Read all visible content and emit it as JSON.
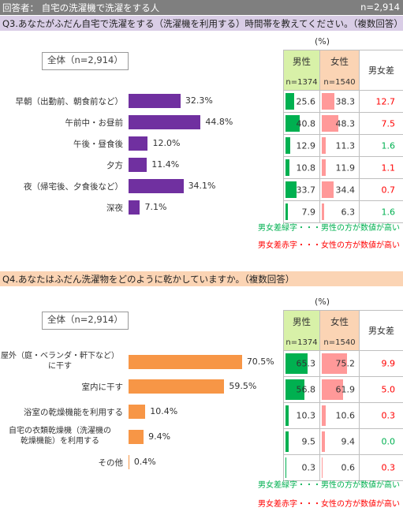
{
  "header": {
    "respondents": "回答者： 自宅の洗濯機で洗濯をする人",
    "total": "n=2,914"
  },
  "colors": {
    "q3_bar": "#7030a0",
    "q4_bar": "#f79646",
    "male_bar": "#00b050",
    "female_bar": "#ff9999",
    "diff_green": "#00b050",
    "diff_red": "#ff0000"
  },
  "table_header": {
    "unit": "(%)",
    "male": "男性",
    "female": "女性",
    "male_n": "n=1374",
    "female_n": "n=1540",
    "diff": "男女差"
  },
  "legend": {
    "green": "男女差緑字・・・男性の方が数値が高い",
    "red": "男女差赤字・・・女性の方が数値が高い"
  },
  "chart_data": [
    {
      "type": "bar",
      "question": "Q3.あなたがふだん自宅で洗濯をする（洗濯機を利用する）時間帯を教えてください。（複数回答）",
      "total_label": "全体（n=2,914）",
      "unit": "(%)",
      "categories": [
        "早朝（出勤前、朝食前など）",
        "午前中・お昼前",
        "午後・昼食後",
        "夕方",
        "夜（帰宅後、夕食後など）",
        "深夜"
      ],
      "series": [
        {
          "name": "全体（n=2,914）",
          "values": [
            32.3,
            44.8,
            12.0,
            11.4,
            34.1,
            7.1
          ],
          "labels": [
            "32.3%",
            "44.8%",
            "12.0%",
            "11.4%",
            "34.1%",
            "7.1%"
          ]
        },
        {
          "name": "男性",
          "values": [
            25.6,
            40.8,
            12.9,
            10.8,
            33.7,
            7.9
          ],
          "labels": [
            "25.6",
            "40.8",
            "12.9",
            "10.8",
            "33.7",
            "7.9"
          ]
        },
        {
          "name": "女性",
          "values": [
            38.3,
            48.3,
            11.3,
            11.9,
            34.4,
            6.3
          ],
          "labels": [
            "38.3",
            "48.3",
            "11.3",
            "11.9",
            "34.4",
            "6.3"
          ]
        }
      ],
      "diff": [
        {
          "value": "12.7",
          "higher": "female"
        },
        {
          "value": "7.5",
          "higher": "female"
        },
        {
          "value": "1.6",
          "higher": "male"
        },
        {
          "value": "1.1",
          "higher": "female"
        },
        {
          "value": "0.7",
          "higher": "female"
        },
        {
          "value": "1.6",
          "higher": "male"
        }
      ]
    },
    {
      "type": "bar",
      "question": "Q4.あなたはふだん洗濯物をどのように乾かしていますか。（複数回答）",
      "total_label": "全体（n=2,914）",
      "unit": "(%)",
      "categories": [
        "屋外（庭・ベランダ・軒下など）に干す",
        "室内に干す",
        "浴室の乾燥機能を利用する",
        "自宅の衣類乾燥機（洗濯機の乾燥機能）を利用する",
        "その他"
      ],
      "category_lines": [
        [
          "屋外（庭・ベランダ・軒下など）",
          "に干す"
        ],
        [
          "室内に干す"
        ],
        [
          "浴室の乾燥機能を利用する"
        ],
        [
          "自宅の衣類乾燥機（洗濯機の",
          "乾燥機能）を利用する"
        ],
        [
          "その他"
        ]
      ],
      "series": [
        {
          "name": "全体（n=2,914）",
          "values": [
            70.5,
            59.5,
            10.4,
            9.4,
            0.4
          ],
          "labels": [
            "70.5%",
            "59.5%",
            "10.4%",
            "9.4%",
            "0.4%"
          ]
        },
        {
          "name": "男性",
          "values": [
            65.3,
            56.8,
            10.3,
            9.5,
            0.3
          ],
          "labels": [
            "65.3",
            "56.8",
            "10.3",
            "9.5",
            "0.3"
          ]
        },
        {
          "name": "女性",
          "values": [
            75.2,
            61.9,
            10.6,
            9.4,
            0.6
          ],
          "labels": [
            "75.2",
            "61.9",
            "10.6",
            "9.4",
            "0.6"
          ]
        }
      ],
      "diff": [
        {
          "value": "9.9",
          "higher": "female"
        },
        {
          "value": "5.0",
          "higher": "female"
        },
        {
          "value": "0.3",
          "higher": "female"
        },
        {
          "value": "0.0",
          "higher": "male"
        },
        {
          "value": "0.3",
          "higher": "female"
        }
      ]
    }
  ]
}
